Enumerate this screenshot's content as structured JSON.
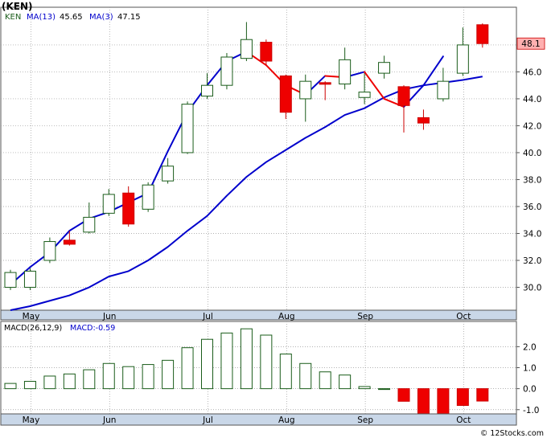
{
  "title": "(KEN)",
  "copyright": "© 12Stocks.com",
  "colors": {
    "up_candle_stroke": "#1a5c1a",
    "down_candle_fill": "#ee0000",
    "ma13": "#0000cc",
    "ma3": "#ee0000",
    "macd_pos_stroke": "#1a5c1a",
    "macd_neg_fill": "#ee0000",
    "axis_band": "#c9d7e8",
    "last_price_box": "#ffb0b0"
  },
  "chart_data": [
    {
      "type": "candlestick",
      "ticker": "KEN",
      "legend": [
        {
          "label": "KEN",
          "color": "#1a5c1a"
        },
        {
          "label": "MA(13)",
          "value": "45.65",
          "color": "#0000cc"
        },
        {
          "label": "MA(3)",
          "value": "47.15",
          "color": "#0000cc"
        }
      ],
      "last_price": "48.1",
      "ylim": [
        28.3,
        50.8
      ],
      "y_ticks": [
        "30.0",
        "32.0",
        "34.0",
        "36.0",
        "38.0",
        "40.0",
        "42.0",
        "44.0",
        "46.0",
        "48.0"
      ],
      "x_ticks": [
        {
          "label": "May",
          "i": 1
        },
        {
          "label": "Jun",
          "i": 5
        },
        {
          "label": "Jul",
          "i": 10
        },
        {
          "label": "Aug",
          "i": 14
        },
        {
          "label": "Sep",
          "i": 18
        },
        {
          "label": "Oct",
          "i": 23
        }
      ],
      "candles": [
        {
          "o": 30.0,
          "h": 31.3,
          "l": 29.8,
          "c": 31.1
        },
        {
          "o": 30.0,
          "h": 31.4,
          "l": 29.8,
          "c": 31.2
        },
        {
          "o": 32.0,
          "h": 33.7,
          "l": 31.8,
          "c": 33.4
        },
        {
          "o": 33.5,
          "h": 34.2,
          "l": 33.1,
          "c": 33.2
        },
        {
          "o": 34.1,
          "h": 36.3,
          "l": 34.0,
          "c": 35.2
        },
        {
          "o": 35.5,
          "h": 37.3,
          "l": 35.3,
          "c": 36.9
        },
        {
          "o": 37.0,
          "h": 37.5,
          "l": 34.5,
          "c": 34.7
        },
        {
          "o": 35.8,
          "h": 37.8,
          "l": 35.6,
          "c": 37.6
        },
        {
          "o": 37.9,
          "h": 39.6,
          "l": 37.7,
          "c": 39.0
        },
        {
          "o": 40.0,
          "h": 43.8,
          "l": 39.9,
          "c": 43.6
        },
        {
          "o": 44.2,
          "h": 45.9,
          "l": 44.0,
          "c": 45.0
        },
        {
          "o": 45.0,
          "h": 47.4,
          "l": 44.7,
          "c": 47.1
        },
        {
          "o": 47.0,
          "h": 49.7,
          "l": 46.8,
          "c": 48.4
        },
        {
          "o": 48.2,
          "h": 48.4,
          "l": 46.5,
          "c": 46.8
        },
        {
          "o": 45.7,
          "h": 45.8,
          "l": 42.5,
          "c": 43.0
        },
        {
          "o": 44.0,
          "h": 45.8,
          "l": 42.3,
          "c": 45.3
        },
        {
          "o": 45.2,
          "h": 45.3,
          "l": 43.9,
          "c": 45.1
        },
        {
          "o": 45.1,
          "h": 47.8,
          "l": 44.7,
          "c": 46.9
        },
        {
          "o": 44.1,
          "h": 45.9,
          "l": 43.6,
          "c": 44.5
        },
        {
          "o": 45.9,
          "h": 47.2,
          "l": 45.5,
          "c": 46.7
        },
        {
          "o": 44.9,
          "h": 45.0,
          "l": 41.5,
          "c": 43.5
        },
        {
          "o": 42.6,
          "h": 43.2,
          "l": 41.7,
          "c": 42.2
        },
        {
          "o": 44.0,
          "h": 46.3,
          "l": 43.8,
          "c": 45.3
        },
        {
          "o": 45.9,
          "h": 49.3,
          "l": 45.7,
          "c": 48.0
        },
        {
          "o": 49.5,
          "h": 49.6,
          "l": 47.8,
          "c": 48.1
        }
      ],
      "ma13": [
        28.3,
        28.6,
        29.0,
        29.4,
        30.0,
        30.8,
        31.2,
        32.0,
        33.0,
        34.2,
        35.3,
        36.8,
        38.2,
        39.3,
        40.2,
        41.1,
        41.9,
        42.8,
        43.3,
        44.1,
        44.7,
        45.0,
        45.2,
        45.4,
        45.65
      ],
      "ma3": [
        30.2,
        31.5,
        32.6,
        34.2,
        35.1,
        35.6,
        36.3,
        37.0,
        40.1,
        43.0,
        45.0,
        46.8,
        47.5,
        46.5,
        45.0,
        44.3,
        45.7,
        45.6,
        46.0,
        44.0,
        43.4,
        45.0,
        47.15
      ]
    },
    {
      "type": "bar",
      "label": "MACD(26,12,9)",
      "legend_value": "MACD:-0.59",
      "ylim": [
        -1.2,
        3.2
      ],
      "y_ticks": [
        "-1.0",
        "0.0",
        "1.0",
        "2.0"
      ],
      "x_ticks": [
        {
          "label": "May",
          "i": 1
        },
        {
          "label": "Jun",
          "i": 5
        },
        {
          "label": "Jul",
          "i": 10
        },
        {
          "label": "Aug",
          "i": 14
        },
        {
          "label": "Sep",
          "i": 18
        },
        {
          "label": "Oct",
          "i": 23
        }
      ],
      "values": [
        0.25,
        0.35,
        0.6,
        0.7,
        0.9,
        1.2,
        1.05,
        1.15,
        1.35,
        1.95,
        2.35,
        2.65,
        2.85,
        2.55,
        1.65,
        1.2,
        0.8,
        0.65,
        0.1,
        0.0,
        -0.6,
        -1.2,
        -1.2,
        -0.8,
        -0.59
      ]
    }
  ]
}
